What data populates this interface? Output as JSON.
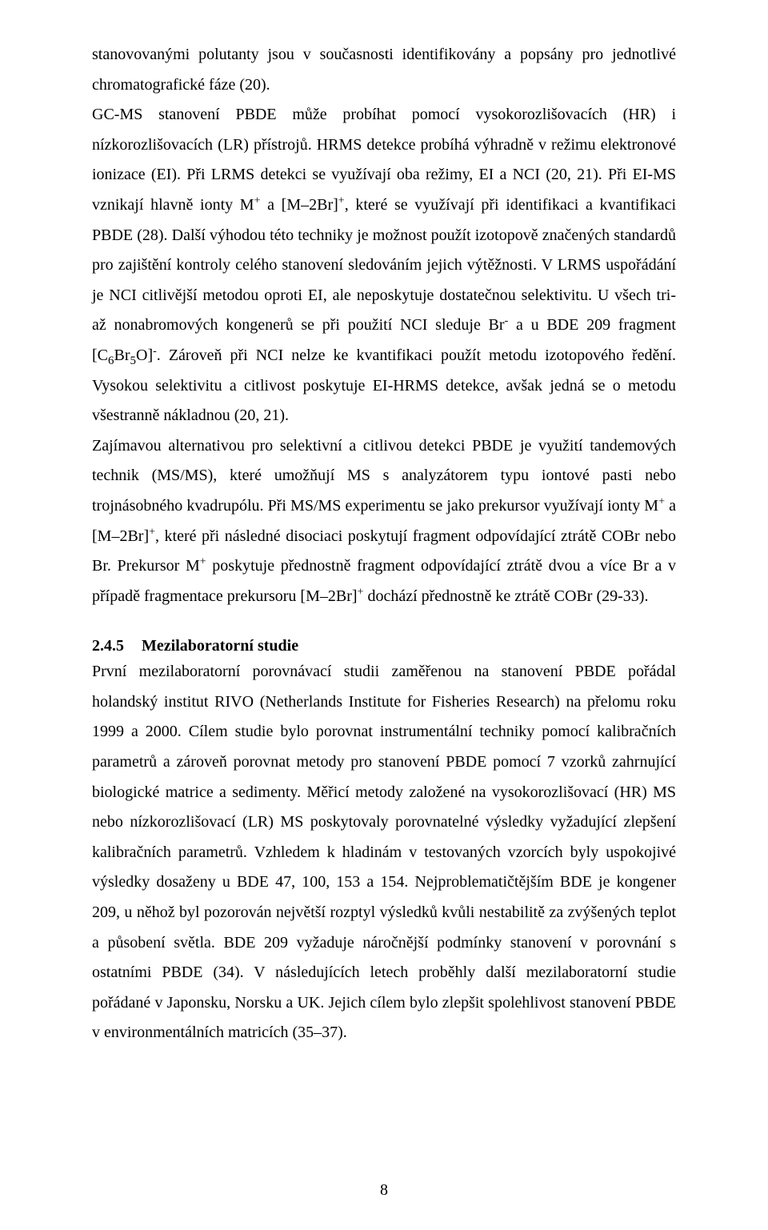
{
  "paragraphs": {
    "p1": "stanovovanými polutanty jsou v současnosti identifikovány a popsány pro jednotlivé chromatografické fáze (20).",
    "p2_part1": "GC-MS stanovení PBDE může probíhat pomocí vysokorozlišovacích (HR) i nízkorozlišovacích (LR) přístrojů. HRMS detekce probíhá výhradně v režimu elektronové ionizace (EI). Při LRMS detekci se využívají oba režimy, EI a NCI (20, 21). Při EI-MS vznikají hlavně ionty M",
    "p2_part2": " a [M–2Br]",
    "p2_part3": ", které se využívají při identifikaci a kvantifikaci PBDE (28). Další výhodou této techniky je možnost použít izotopově značených standardů pro zajištění kontroly celého stanovení sledováním jejich výtěžnosti. V LRMS uspořádání je NCI citlivější metodou oproti EI, ale neposkytuje dostatečnou selektivitu. U všech tri- až nonabromových kongenerů se při použití NCI sleduje Br",
    "p2_part4": " a u BDE 209 fragment [C",
    "p2_part5": "Br",
    "p2_part6": "O]",
    "p2_part7": ". Zároveň při NCI nelze ke kvantifikaci použít metodu izotopového ředění. Vysokou selektivitu a citlivost poskytuje EI-HRMS detekce, avšak jedná se o metodu všestranně nákladnou (20, 21).",
    "p3_part1": "Zajímavou alternativou pro selektivní a citlivou detekci PBDE je využití tandemových technik (MS/MS), které umožňují MS s analyzátorem typu iontové pasti nebo trojnásobného kvadrupólu. Při MS/MS experimentu se jako prekursor využívají ionty M",
    "p3_part2": " a [M–2Br]",
    "p3_part3": ", které při následné disociaci poskytují fragment odpovídající ztrátě COBr nebo Br. Prekursor M",
    "p3_part4": " poskytuje přednostně fragment odpovídající ztrátě dvou a více Br a v případě fragmentace prekursoru [M–2Br]",
    "p3_part5": " dochází přednostně ke ztrátě COBr (29-33).",
    "sup_plus": "+",
    "sup_minus": "-",
    "sub_6": "6",
    "sub_5": "5"
  },
  "section": {
    "number": "2.4.5",
    "title": "Mezilaboratorní studie",
    "body": "První mezilaboratorní porovnávací studii zaměřenou na stanovení PBDE pořádal holandský institut RIVO (Netherlands Institute for Fisheries Research) na přelomu roku 1999 a 2000. Cílem studie bylo porovnat instrumentální techniky pomocí kalibračních parametrů a zároveň porovnat metody pro stanovení PBDE pomocí 7 vzorků zahrnující biologické matrice a sedimenty. Měřicí metody založené na vysokorozlišovací (HR) MS nebo nízkorozlišovací (LR) MS poskytovaly porovnatelné výsledky vyžadující zlepšení kalibračních parametrů. Vzhledem k hladinám v testovaných vzorcích byly uspokojivé výsledky dosaženy u BDE 47, 100, 153 a 154. Nejproblematičtějším BDE je kongener 209, u něhož byl pozorován největší rozptyl výsledků kvůli nestabilitě za zvýšených teplot a působení světla. BDE 209 vyžaduje náročnější podmínky stanovení v porovnání s ostatními PBDE (34). V následujících letech proběhly další mezilaboratorní studie pořádané v Japonsku, Norsku a UK. Jejich cílem bylo zlepšit spolehlivost stanovení PBDE v environmentálních matricích (35–37)."
  },
  "pageNumber": "8"
}
